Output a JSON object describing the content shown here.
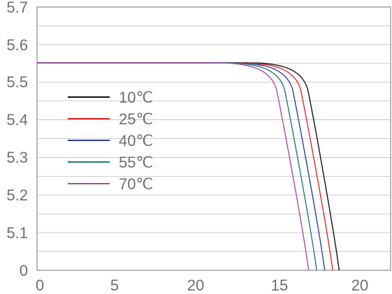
{
  "chart_data": {
    "type": "line",
    "title": "",
    "xlabel": "",
    "ylabel": "",
    "x_tick_labels": [
      "0",
      "5",
      "20",
      "15",
      "20"
    ],
    "y_tick_labels": [
      "0",
      "5.1",
      "5.2",
      "5.3",
      "5.4",
      "5.5",
      "5.6",
      "5.7"
    ],
    "xlim": [
      0,
      22
    ],
    "grid": "horizontal",
    "legend_position": "upper-left",
    "series": [
      {
        "name": "10℃",
        "color": "#111111",
        "isc": 5.55,
        "x_drop_start": 14.5,
        "x_zero": 18.8
      },
      {
        "name": "25℃",
        "color": "#e0262b",
        "isc": 5.55,
        "x_drop_start": 14.0,
        "x_zero": 18.4
      },
      {
        "name": "40℃",
        "color": "#2d3e9e",
        "isc": 5.55,
        "x_drop_start": 13.5,
        "x_zero": 17.9
      },
      {
        "name": "55℃",
        "color": "#1f7d6c",
        "isc": 5.55,
        "x_drop_start": 13.0,
        "x_zero": 17.4
      },
      {
        "name": "70℃",
        "color": "#a64ca6",
        "isc": 5.55,
        "x_drop_start": 12.5,
        "x_zero": 16.9
      }
    ]
  }
}
